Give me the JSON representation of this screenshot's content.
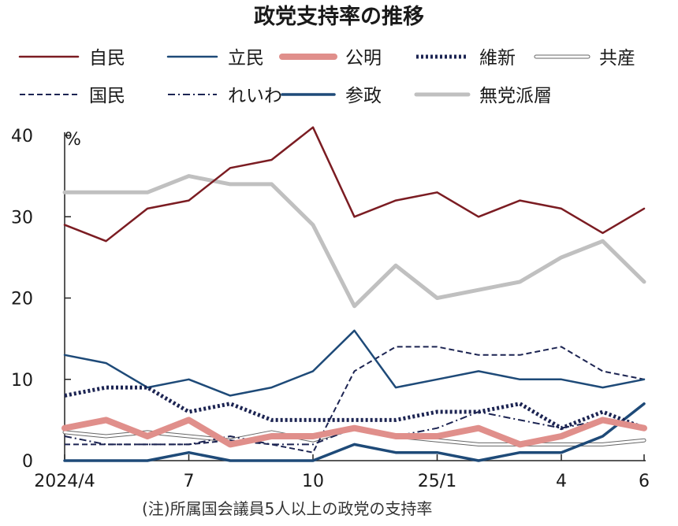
{
  "chart_data": {
    "type": "line",
    "title": "政党支持率の推移",
    "unit": "%",
    "note": "(注)所属国会議員5人以上の政党の支持率",
    "ylim": [
      0,
      40
    ],
    "yticks": [
      "0",
      "10",
      "20",
      "30",
      "40"
    ],
    "xtick_labels": [
      {
        "index": 0,
        "label": "2024/4"
      },
      {
        "index": 3,
        "label": "7"
      },
      {
        "index": 6,
        "label": "10"
      },
      {
        "index": 9,
        "label": "25/1"
      },
      {
        "index": 12,
        "label": "4"
      },
      {
        "index": 14,
        "label": "6"
      }
    ],
    "x": [
      "2024/4",
      "2024/5",
      "2024/6",
      "2024/7",
      "2024/8",
      "2024/9",
      "2024/10",
      "2024/11",
      "2024/12",
      "2025/1",
      "2025/2",
      "2025/3",
      "2025/4",
      "2025/5",
      "2025/6"
    ],
    "grid": false,
    "legend_position": "top",
    "series": [
      {
        "name": "自民",
        "color": "#7b1c22",
        "style": "solid",
        "values": [
          29,
          27,
          31,
          32,
          36,
          37,
          41,
          30,
          32,
          33,
          30,
          32,
          31,
          28,
          31
        ]
      },
      {
        "name": "立民",
        "color": "#1e4a78",
        "style": "solid",
        "values": [
          13,
          12,
          9,
          10,
          8,
          9,
          11,
          16,
          9,
          10,
          11,
          10,
          10,
          9,
          10
        ]
      },
      {
        "name": "公明",
        "color": "#e08f8b",
        "style": "thick",
        "values": [
          4,
          5,
          3,
          5,
          2,
          3,
          3,
          4,
          3,
          3,
          4,
          2,
          3,
          5,
          4
        ]
      },
      {
        "name": "維新",
        "color": "#1c2452",
        "style": "dotted",
        "values": [
          8,
          9,
          9,
          6,
          7,
          5,
          5,
          5,
          5,
          6,
          6,
          7,
          4,
          6,
          4
        ]
      },
      {
        "name": "共産",
        "color": "#666666",
        "style": "outline",
        "values": [
          3.5,
          3,
          3.5,
          3,
          2.5,
          3.5,
          2.5,
          4,
          3,
          2.5,
          2,
          2,
          2,
          2,
          2.5
        ]
      },
      {
        "name": "国民",
        "color": "#1c2452",
        "style": "dashed",
        "values": [
          2,
          2,
          2,
          2,
          2.5,
          2,
          1,
          11,
          14,
          14,
          13,
          13,
          14,
          11,
          10
        ]
      },
      {
        "name": "れいわ",
        "color": "#1c2452",
        "style": "dashdot",
        "values": [
          3,
          2,
          2,
          2,
          3,
          2,
          2,
          4,
          3,
          4,
          6,
          5,
          4,
          5,
          4
        ]
      },
      {
        "name": "参政",
        "color": "#1e4a78",
        "style": "solid-thick",
        "values": [
          0,
          0,
          0,
          1,
          0,
          0,
          0,
          2,
          1,
          1,
          0,
          1,
          1,
          3,
          7
        ]
      },
      {
        "name": "無党派層",
        "color": "#c0c0c0",
        "style": "thick",
        "values": [
          33,
          33,
          33,
          35,
          34,
          34,
          29,
          19,
          24,
          20,
          21,
          22,
          25,
          27,
          22
        ]
      }
    ]
  }
}
